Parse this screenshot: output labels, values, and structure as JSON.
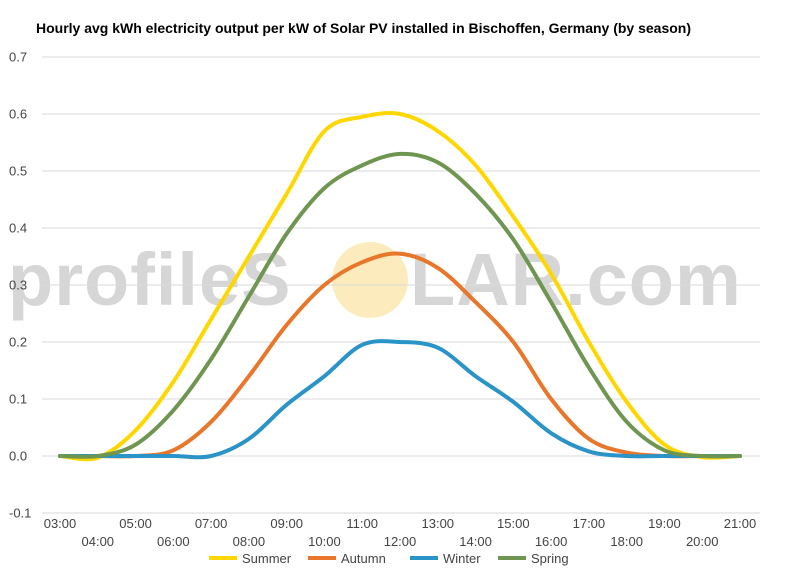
{
  "watermark": {
    "left_text": "profileS",
    "right_text": "LAR.com",
    "sun_color": "#f9d26b"
  },
  "chart_data": {
    "type": "line",
    "title": "Hourly avg kWh electricity output per kW of Solar PV installed in Bischoffen, Germany (by season)",
    "xlabel": "",
    "ylabel": "",
    "ylim": [
      -0.1,
      0.7
    ],
    "yticks": [
      "-0.1",
      "0.0",
      "0.1",
      "0.2",
      "0.3",
      "0.4",
      "0.5",
      "0.6",
      "0.7"
    ],
    "x": [
      "03:00",
      "04:00",
      "05:00",
      "06:00",
      "07:00",
      "08:00",
      "09:00",
      "10:00",
      "11:00",
      "12:00",
      "13:00",
      "14:00",
      "15:00",
      "16:00",
      "17:00",
      "18:00",
      "19:00",
      "20:00",
      "21:00"
    ],
    "grid": true,
    "legend": "bottom",
    "series": [
      {
        "name": "Summer",
        "color": "#ffd700",
        "values": [
          0.0,
          -0.003,
          0.045,
          0.13,
          0.24,
          0.35,
          0.46,
          0.57,
          0.595,
          0.6,
          0.57,
          0.51,
          0.42,
          0.32,
          0.2,
          0.095,
          0.02,
          -0.002,
          0.0
        ]
      },
      {
        "name": "Autumn",
        "color": "#e8762b",
        "values": [
          0.0,
          0.0,
          0.0,
          0.01,
          0.06,
          0.14,
          0.23,
          0.3,
          0.34,
          0.355,
          0.33,
          0.27,
          0.2,
          0.1,
          0.03,
          0.006,
          0.0,
          0.0,
          0.0
        ]
      },
      {
        "name": "Winter",
        "color": "#2a93c7",
        "values": [
          0.0,
          0.0,
          0.0,
          0.0,
          0.0,
          0.03,
          0.09,
          0.14,
          0.195,
          0.2,
          0.19,
          0.14,
          0.095,
          0.04,
          0.008,
          0.0,
          0.0,
          0.0,
          0.0
        ]
      },
      {
        "name": "Spring",
        "color": "#6f9650",
        "values": [
          0.0,
          0.0,
          0.02,
          0.08,
          0.17,
          0.28,
          0.39,
          0.47,
          0.51,
          0.53,
          0.515,
          0.46,
          0.38,
          0.27,
          0.155,
          0.06,
          0.01,
          0.0,
          0.0
        ]
      }
    ]
  }
}
